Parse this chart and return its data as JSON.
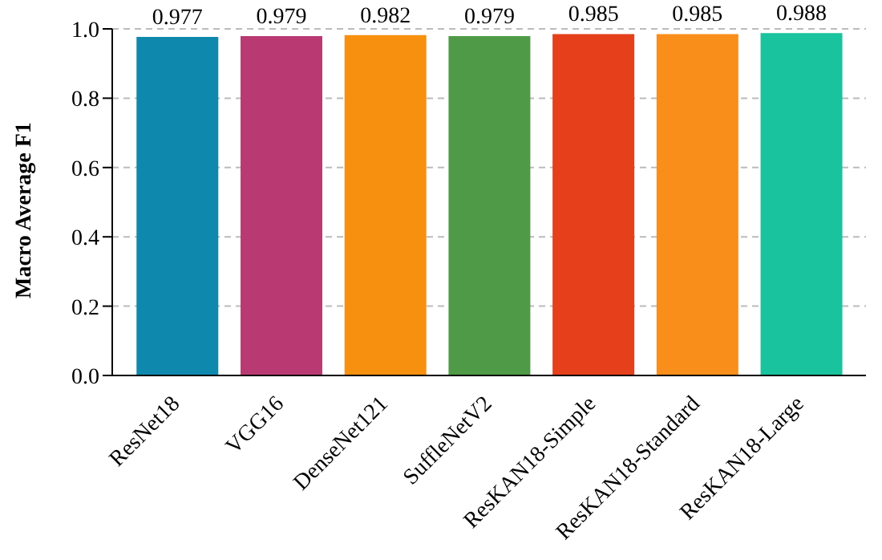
{
  "chart_data": {
    "type": "bar",
    "ylabel": "Macro Average F1",
    "categories": [
      "ResNet18",
      "VGG16",
      "DenseNet121",
      "SuffleNetV2",
      "ResKAN18-Simple",
      "ResKAN18-Standard",
      "ResKAN18-Large"
    ],
    "values": [
      0.977,
      0.979,
      0.982,
      0.979,
      0.985,
      0.985,
      0.988
    ],
    "colors": [
      "#0f88ae",
      "#b93a73",
      "#f7900f",
      "#4f9a46",
      "#e5401b",
      "#f98e1b",
      "#19c39d"
    ],
    "ylim": [
      0,
      1.0
    ],
    "yticks": [
      {
        "value": 0,
        "label": "0.0"
      },
      {
        "value": 0.2,
        "label": "0.2"
      },
      {
        "value": 0.4,
        "label": "0.4"
      },
      {
        "value": 0.6,
        "label": "0.6"
      },
      {
        "value": 0.8,
        "label": "0.8"
      },
      {
        "value": 1.0,
        "label": "1.0"
      }
    ],
    "grid": "y",
    "data_labels": true
  }
}
